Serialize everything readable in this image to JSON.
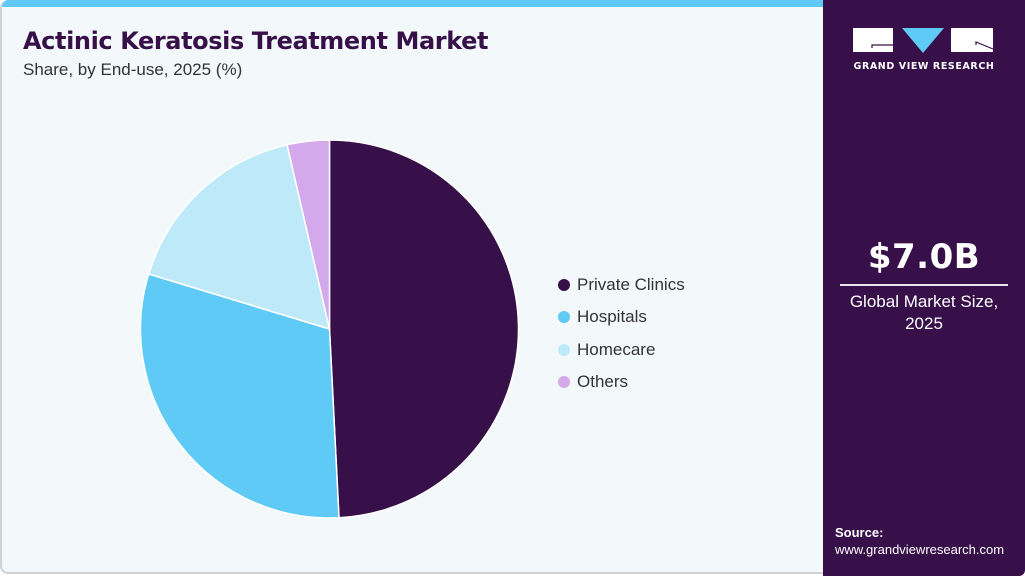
{
  "header": {
    "title": "Actinic Keratosis Treatment Market",
    "subtitle": "Share, by End-use, 2025 (%)"
  },
  "colors": {
    "accent_bar": "#5ecaf5",
    "brand_dark": "#37104a",
    "card_background": "#f3f8fb"
  },
  "chart_data": {
    "type": "pie",
    "title": "Actinic Keratosis Treatment Market",
    "subtitle": "Share, by End-use, 2025 (%)",
    "categories": [
      "Private Clinics",
      "Hospitals",
      "Homecare",
      "Others"
    ],
    "values": [
      49.2,
      30.5,
      16.7,
      3.6
    ],
    "colors": [
      "#37104a",
      "#5ecaf5",
      "#bde9f9",
      "#d4a9ec"
    ],
    "start_angle": "12 o'clock, clockwise",
    "legend_position": "right",
    "data_labels": false
  },
  "legend": {
    "items": [
      {
        "label": "Private Clinics",
        "color": "#37104a"
      },
      {
        "label": "Hospitals",
        "color": "#5ecaf5"
      },
      {
        "label": "Homecare",
        "color": "#bde9f9"
      },
      {
        "label": "Others",
        "color": "#d4a9ec"
      }
    ]
  },
  "sidebar": {
    "logo_icon": "grand-view-research-logo",
    "logo_text": "GRAND VIEW RESEARCH",
    "market_value": "$7.0B",
    "market_label_line1": "Global Market Size,",
    "market_label_line2": "2025",
    "source_label": "Source:",
    "source_url": "www.grandviewresearch.com"
  }
}
